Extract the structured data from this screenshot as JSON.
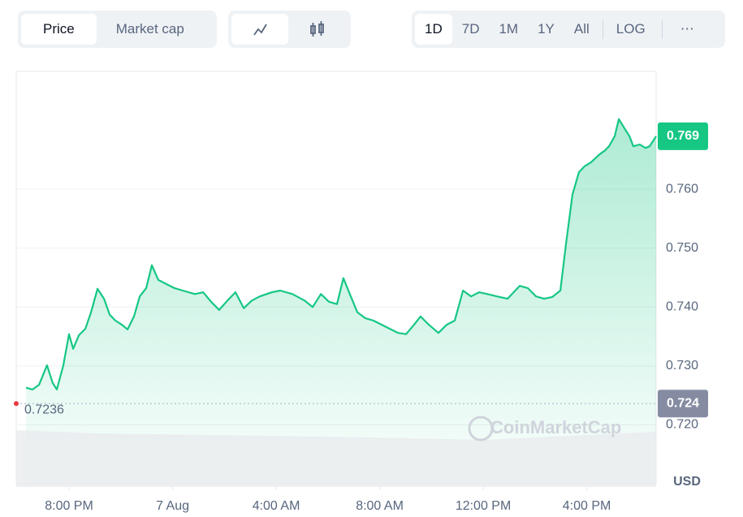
{
  "controls": {
    "tabs": [
      "Price",
      "Market cap"
    ],
    "ranges": [
      "1D",
      "7D",
      "1M",
      "1Y",
      "All",
      "LOG"
    ]
  },
  "chart_data": {
    "type": "line",
    "x": [
      -1.66,
      -1.41,
      -1.16,
      -0.85,
      -0.63,
      -0.47,
      -0.22,
      0,
      0.16,
      0.38,
      0.63,
      0.85,
      1.1,
      1.35,
      1.57,
      1.79,
      2.04,
      2.26,
      2.51,
      2.73,
      2.98,
      3.2,
      3.45,
      3.76,
      4.08,
      4.39,
      4.86,
      5.18,
      5.49,
      5.8,
      6.12,
      6.43,
      6.75,
      7.06,
      7.37,
      7.84,
      8.16,
      8.63,
      9.1,
      9.41,
      9.73,
      10.04,
      10.35,
      10.6,
      10.82,
      11.14,
      11.45,
      11.76,
      12.08,
      12.39,
      12.71,
      13.02,
      13.33,
      13.58,
      13.9,
      14.27,
      14.59,
      14.9,
      15.22,
      15.53,
      15.84,
      16.16,
      16.53,
      16.94,
      17.41,
      17.73,
      18.04,
      18.35,
      18.67,
      18.98,
      19.2,
      19.45,
      19.7,
      19.92,
      20.17,
      20.49,
      20.71,
      20.86,
      21.08,
      21.24,
      21.49,
      21.65,
      21.8,
      22.05,
      22.27,
      22.43,
      22.68
    ],
    "series": [
      {
        "color": "#16c784",
        "values": [
          0.7263,
          0.726,
          0.7268,
          0.7301,
          0.7271,
          0.726,
          0.7301,
          0.7354,
          0.7329,
          0.7352,
          0.7363,
          0.7391,
          0.7431,
          0.7414,
          0.7387,
          0.7377,
          0.737,
          0.7362,
          0.7384,
          0.7418,
          0.7432,
          0.7471,
          0.7446,
          0.7439,
          0.7432,
          0.7428,
          0.7422,
          0.7425,
          0.7409,
          0.7395,
          0.7411,
          0.7425,
          0.7398,
          0.7411,
          0.7418,
          0.7425,
          0.7428,
          0.7422,
          0.7411,
          0.74,
          0.7422,
          0.7409,
          0.7405,
          0.7449,
          0.7425,
          0.7391,
          0.7381,
          0.7377,
          0.737,
          0.7363,
          0.7356,
          0.7354,
          0.737,
          0.7384,
          0.737,
          0.7356,
          0.737,
          0.7377,
          0.7428,
          0.7418,
          0.7425,
          0.7422,
          0.7418,
          0.7414,
          0.7436,
          0.7432,
          0.7418,
          0.7414,
          0.7417,
          0.7428,
          0.7508,
          0.7591,
          0.7629,
          0.7639,
          0.7646,
          0.7659,
          0.7666,
          0.7673,
          0.769,
          0.7719,
          0.7701,
          0.769,
          0.7673,
          0.7676,
          0.767,
          0.7673,
          0.769
        ]
      }
    ],
    "xlim": [
      -2.04,
      22.68
    ],
    "xticks": [
      {
        "value": 0,
        "label": "8:00 PM"
      },
      {
        "value": 4,
        "label": "7 Aug"
      },
      {
        "value": 8,
        "label": "4:00 AM"
      },
      {
        "value": 12,
        "label": "8:00 AM"
      },
      {
        "value": 16,
        "label": "12:00 PM"
      },
      {
        "value": 20,
        "label": "4:00 PM"
      }
    ],
    "ylim": [
      0.71,
      0.78
    ],
    "yticks": [
      {
        "value": 0.72,
        "label": "0.720"
      },
      {
        "value": 0.73,
        "label": "0.730"
      },
      {
        "value": 0.74,
        "label": "0.740"
      },
      {
        "value": 0.75,
        "label": "0.750"
      },
      {
        "value": 0.76,
        "label": "0.760"
      }
    ],
    "grid": true,
    "current_price": {
      "value": 0.769,
      "label": "0.769",
      "color": "#16c784"
    },
    "open_price": {
      "value": 0.7236,
      "label": "0.7236",
      "axis_label": "0.724",
      "color": "#858ca2"
    },
    "y_unit": "USD",
    "watermark": "CoinMarketCap"
  }
}
